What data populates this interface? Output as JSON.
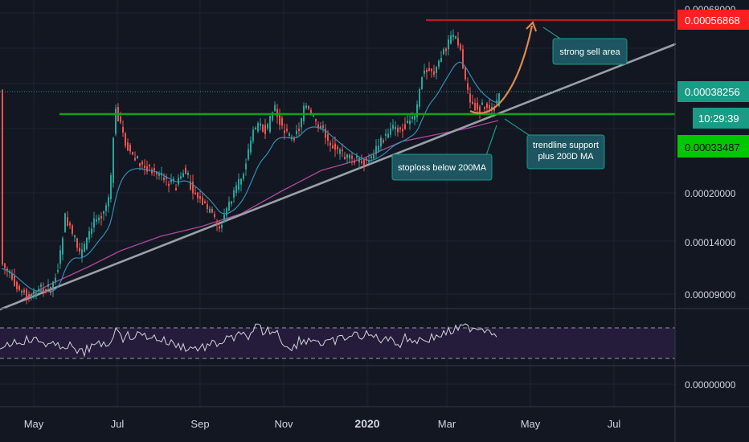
{
  "chart_data": {
    "type": "candlestick",
    "price_axis": {
      "ticks": [
        "0.00020000",
        "0.00014000",
        "0.00009000"
      ],
      "top_cut_label": "0.00068000",
      "scale": "log"
    },
    "time_axis": {
      "ticks": [
        "May",
        "Jul",
        "Sep",
        "Nov",
        "2020",
        "Mar",
        "May",
        "Jul"
      ]
    },
    "price_labels": {
      "sell_level": "0.00056868",
      "current_price": "0.00038256",
      "countdown": "10:29:39",
      "support_level": "0.00033487"
    },
    "annotations": {
      "sell_area": "strong sell area",
      "trendline_support_line1": "trendline support",
      "trendline_support_line2": "plus 200D MA",
      "stoploss": "stoploss below 200MA"
    },
    "rsi_panel": {
      "zero_label": "0.00000000"
    },
    "colors": {
      "background": "#131722",
      "up_candle": "#26a69a",
      "down_candle": "#ef5350",
      "sell_line": "#b71c1c",
      "support_line": "#15a015",
      "trendline": "#9aa0a8",
      "ema_short": "#2f8fb8",
      "ma_200": "#b0479a",
      "projection": "#e08850",
      "sell_label_bg": "#ff1f1f",
      "current_label_bg": "#1a9b86",
      "support_label_bg": "#00c800",
      "annotation_bg": "#1d5560",
      "rsi": "#d1d4dc"
    }
  }
}
